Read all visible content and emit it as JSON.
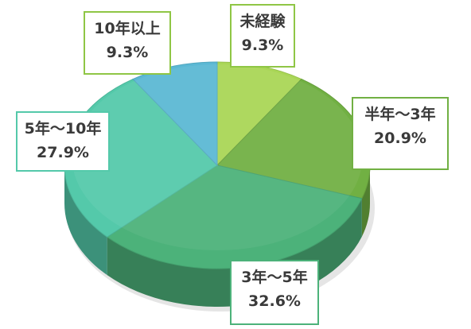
{
  "chart_data": {
    "type": "pie",
    "style": "3d",
    "slices": [
      {
        "label": "未経験",
        "value": 9.3,
        "display": "9.3%",
        "color": "#a9d656"
      },
      {
        "label": "半年～3年",
        "value": 20.9,
        "display": "20.9%",
        "color": "#71b043"
      },
      {
        "label": "3年～5年",
        "value": 32.6,
        "display": "32.6%",
        "color": "#4cb27a"
      },
      {
        "label": "5年～10年",
        "value": 27.9,
        "display": "27.9%",
        "color": "#54c9aa"
      },
      {
        "label": "10年以上",
        "value": 9.3,
        "display": "9.3%",
        "color": "#5bb8d4"
      }
    ],
    "callout_border_colors": [
      "#8fc645",
      "#71b043",
      "#4cb27a",
      "#54c9aa",
      "#8fc645"
    ]
  }
}
